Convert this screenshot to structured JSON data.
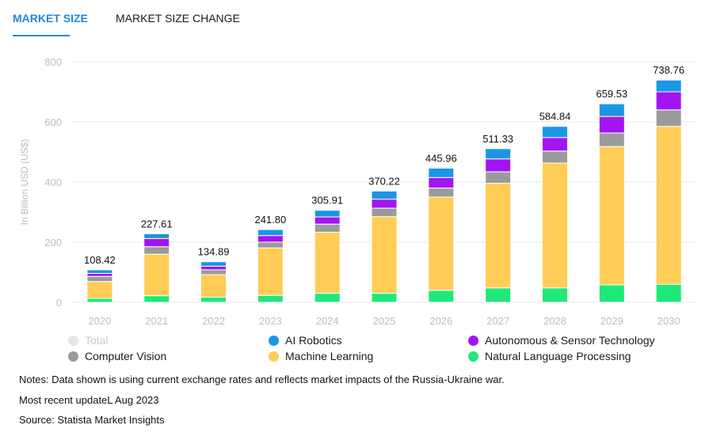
{
  "tabs": [
    {
      "label": "MARKET SIZE",
      "active": true
    },
    {
      "label": "MARKET SIZE CHANGE",
      "active": false
    }
  ],
  "colors": {
    "accent": "#1f87d8",
    "Natural Language Processing": "#1ee87a",
    "Machine Learning": "#ffcc55",
    "Computer Vision": "#9a9a9a",
    "Autonomous & Sensor Technology": "#a215f2",
    "AI Robotics": "#1a96e5",
    "Total": "#e6e6e6"
  },
  "chart_data": {
    "type": "bar",
    "stacked": true,
    "categories": [
      "2020",
      "2021",
      "2022",
      "2023",
      "2024",
      "2025",
      "2026",
      "2027",
      "2028",
      "2029",
      "2030"
    ],
    "ylabel": "In Billion USD (US$)",
    "ylim": [
      0,
      800
    ],
    "yticks": [
      0,
      200,
      400,
      600,
      800
    ],
    "grid": true,
    "totals": [
      "108.42",
      "227.61",
      "134.89",
      "241.80",
      "305.91",
      "370.22",
      "445.96",
      "511.33",
      "584.84",
      "659.53",
      "738.76"
    ],
    "series": [
      {
        "name": "Natural Language Processing",
        "values": [
          13,
          22,
          17,
          23,
          30,
          30,
          40,
          48,
          48,
          58,
          60
        ]
      },
      {
        "name": "Machine Learning",
        "values": [
          56,
          138,
          75,
          158,
          203,
          255,
          310,
          348,
          415,
          460,
          525
        ]
      },
      {
        "name": "Computer Vision",
        "values": [
          17,
          25,
          16,
          19,
          27,
          28,
          30,
          38,
          40,
          45,
          55
        ]
      },
      {
        "name": "Autonomous & Sensor Technology",
        "values": [
          10,
          27,
          12,
          22,
          24,
          30,
          35,
          43,
          45,
          55,
          60
        ]
      },
      {
        "name": "AI Robotics",
        "values": [
          12,
          16,
          15,
          20,
          22,
          27,
          31,
          34,
          37,
          42,
          39
        ]
      }
    ]
  },
  "legend": [
    {
      "label": "Total",
      "color": "#e6e6e6",
      "muted": true
    },
    {
      "label": "AI Robotics",
      "color": "#1a96e5"
    },
    {
      "label": "Autonomous & Sensor Technology",
      "color": "#a215f2"
    },
    {
      "label": "Computer Vision",
      "color": "#9a9a9a"
    },
    {
      "label": "Machine Learning",
      "color": "#ffcc55"
    },
    {
      "label": "Natural Language Processing",
      "color": "#1ee87a"
    }
  ],
  "notes": {
    "line1": "Notes: Data shown is using current exchange rates and reflects market impacts of the Russia-Ukraine war.",
    "line2": "Most recent updateL Aug 2023",
    "line3": "Source: Statista Market Insights"
  }
}
